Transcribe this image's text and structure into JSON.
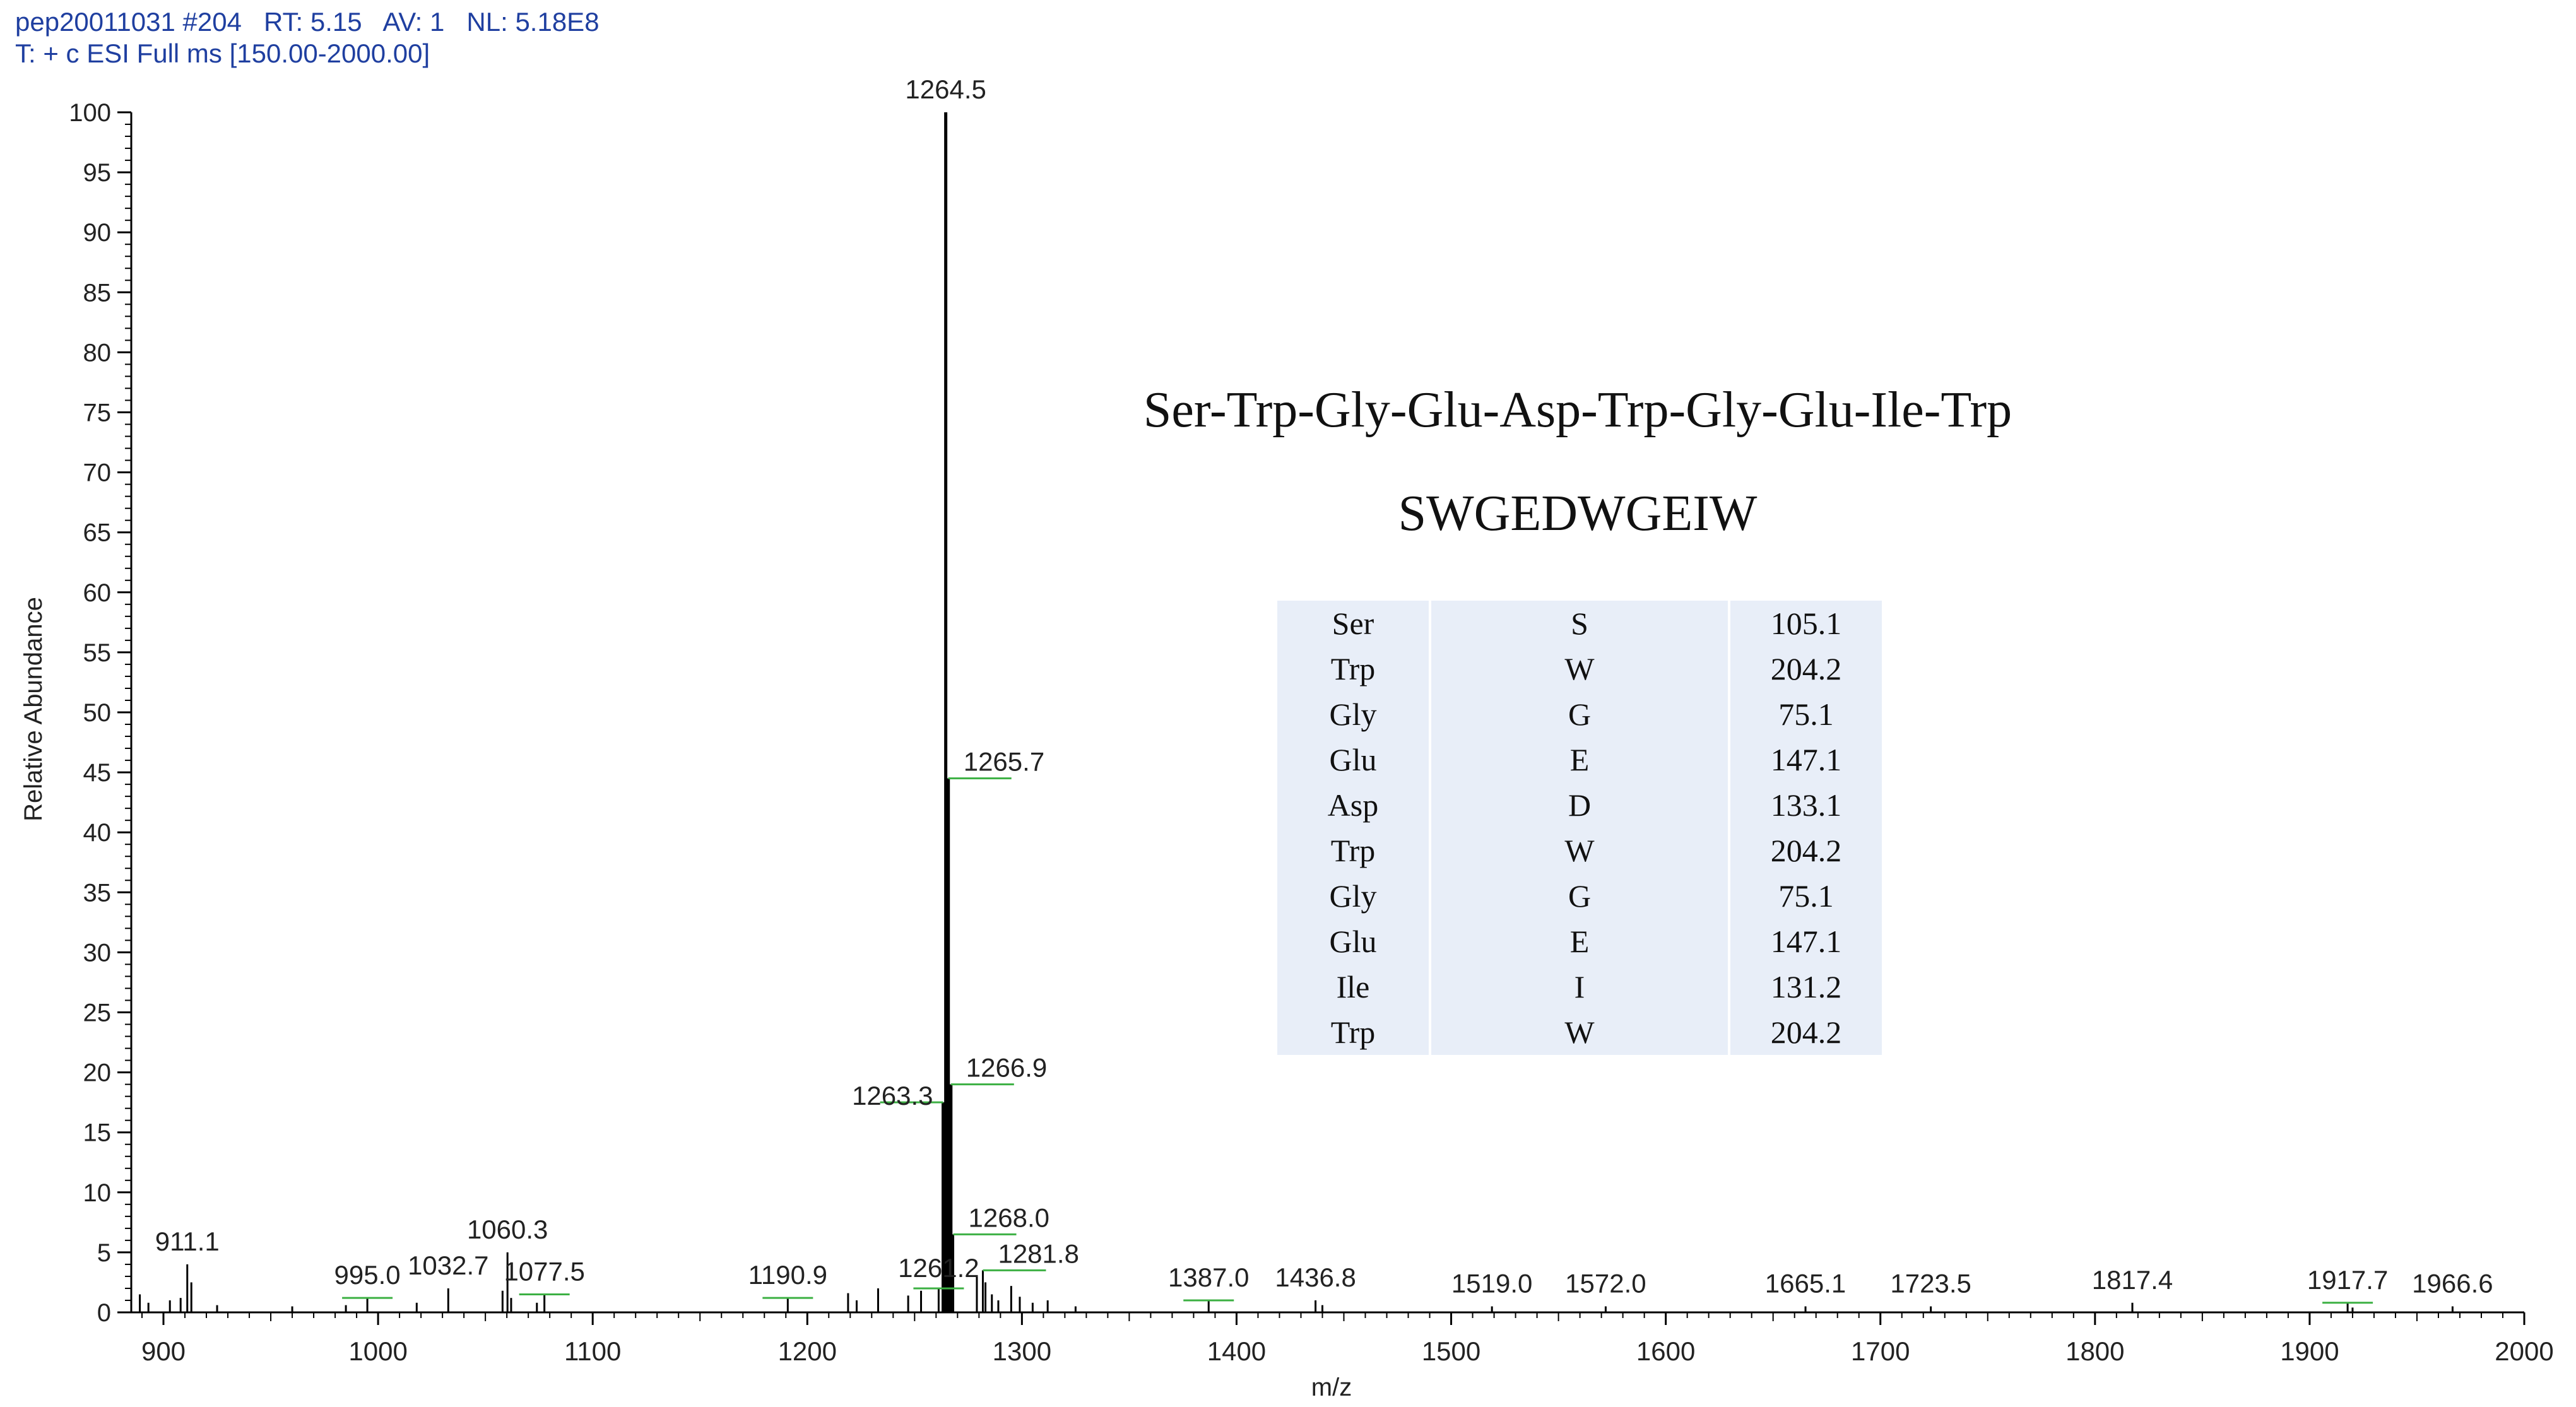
{
  "header": {
    "file": "pep20011031",
    "scan": "#204",
    "rt_label": "RT:",
    "rt": "5.15",
    "av_label": "AV:",
    "av": "1",
    "nl_label": "NL:",
    "nl": "5.18E8",
    "filter": "T: + c ESI Full ms [150.00-2000.00]"
  },
  "sequence": {
    "three_letter": "Ser-Trp-Gly-Glu-Asp-Trp-Gly-Glu-Ile-Trp",
    "one_letter": "SWGEDWGEIW"
  },
  "residues": [
    {
      "name": "Ser",
      "code": "S",
      "mass": "105.1"
    },
    {
      "name": "Trp",
      "code": "W",
      "mass": "204.2"
    },
    {
      "name": "Gly",
      "code": "G",
      "mass": "75.1"
    },
    {
      "name": "Glu",
      "code": "E",
      "mass": "147.1"
    },
    {
      "name": "Asp",
      "code": "D",
      "mass": "133.1"
    },
    {
      "name": "Trp",
      "code": "W",
      "mass": "204.2"
    },
    {
      "name": "Gly",
      "code": "G",
      "mass": "75.1"
    },
    {
      "name": "Glu",
      "code": "E",
      "mass": "147.1"
    },
    {
      "name": "Ile",
      "code": "I",
      "mass": "131.2"
    },
    {
      "name": "Trp",
      "code": "W",
      "mass": "204.2"
    }
  ],
  "colors": {
    "header_text": "#1f3fa0",
    "peak": "#000000",
    "label_marker": "#3cb043",
    "table_bg": "#e8eef8"
  },
  "chart_data": {
    "type": "bar",
    "xlabel": "m/z",
    "ylabel": "Relative Abundance",
    "xlim": [
      885,
      2000
    ],
    "ylim": [
      0,
      100
    ],
    "xticks": [
      "900",
      "1000",
      "1100",
      "1200",
      "1300",
      "1400",
      "1500",
      "1600",
      "1700",
      "1800",
      "1900",
      "2000"
    ],
    "yticks": [
      "0",
      "5",
      "10",
      "15",
      "20",
      "25",
      "30",
      "35",
      "40",
      "45",
      "50",
      "55",
      "60",
      "65",
      "70",
      "75",
      "80",
      "85",
      "90",
      "95",
      "100"
    ],
    "labeled_peaks": [
      {
        "mz": 911.1,
        "intensity": 4.0,
        "label": "911.1"
      },
      {
        "mz": 995.0,
        "intensity": 1.2,
        "label": "995.0"
      },
      {
        "mz": 1032.7,
        "intensity": 2.0,
        "label": "1032.7"
      },
      {
        "mz": 1060.3,
        "intensity": 5.0,
        "label": "1060.3"
      },
      {
        "mz": 1077.5,
        "intensity": 1.5,
        "label": "1077.5"
      },
      {
        "mz": 1190.9,
        "intensity": 1.2,
        "label": "1190.9"
      },
      {
        "mz": 1261.2,
        "intensity": 2.0,
        "label": "1261.2"
      },
      {
        "mz": 1263.3,
        "intensity": 17.5,
        "label": "1263.3"
      },
      {
        "mz": 1264.5,
        "intensity": 100,
        "label": "1264.5"
      },
      {
        "mz": 1265.7,
        "intensity": 44.5,
        "label": "1265.7"
      },
      {
        "mz": 1266.9,
        "intensity": 19.0,
        "label": "1266.9"
      },
      {
        "mz": 1268.0,
        "intensity": 6.5,
        "label": "1268.0"
      },
      {
        "mz": 1281.8,
        "intensity": 3.5,
        "label": "1281.8"
      },
      {
        "mz": 1387.0,
        "intensity": 1.0,
        "label": "1387.0"
      },
      {
        "mz": 1436.8,
        "intensity": 1.0,
        "label": "1436.8"
      },
      {
        "mz": 1519.0,
        "intensity": 0.5,
        "label": "1519.0"
      },
      {
        "mz": 1572.0,
        "intensity": 0.5,
        "label": "1572.0"
      },
      {
        "mz": 1665.1,
        "intensity": 0.5,
        "label": "1665.1"
      },
      {
        "mz": 1723.5,
        "intensity": 0.5,
        "label": "1723.5"
      },
      {
        "mz": 1817.4,
        "intensity": 0.8,
        "label": "1817.4"
      },
      {
        "mz": 1917.7,
        "intensity": 0.8,
        "label": "1917.7"
      },
      {
        "mz": 1966.6,
        "intensity": 0.5,
        "label": "1966.6"
      }
    ],
    "minor_peaks": [
      {
        "mz": 889,
        "intensity": 1.5
      },
      {
        "mz": 893,
        "intensity": 0.8
      },
      {
        "mz": 903,
        "intensity": 1.0
      },
      {
        "mz": 908,
        "intensity": 1.2
      },
      {
        "mz": 913,
        "intensity": 2.5
      },
      {
        "mz": 925,
        "intensity": 0.6
      },
      {
        "mz": 960,
        "intensity": 0.5
      },
      {
        "mz": 985,
        "intensity": 0.6
      },
      {
        "mz": 1018,
        "intensity": 0.8
      },
      {
        "mz": 1058,
        "intensity": 1.8
      },
      {
        "mz": 1062,
        "intensity": 1.2
      },
      {
        "mz": 1074,
        "intensity": 0.8
      },
      {
        "mz": 1219,
        "intensity": 1.6
      },
      {
        "mz": 1223,
        "intensity": 1.0
      },
      {
        "mz": 1233,
        "intensity": 2.0
      },
      {
        "mz": 1247,
        "intensity": 1.4
      },
      {
        "mz": 1253,
        "intensity": 1.8
      },
      {
        "mz": 1279,
        "intensity": 3.0
      },
      {
        "mz": 1283,
        "intensity": 2.5
      },
      {
        "mz": 1286,
        "intensity": 1.5
      },
      {
        "mz": 1289,
        "intensity": 1.0
      },
      {
        "mz": 1295,
        "intensity": 2.2
      },
      {
        "mz": 1299,
        "intensity": 1.3
      },
      {
        "mz": 1305,
        "intensity": 0.8
      },
      {
        "mz": 1312,
        "intensity": 1.0
      },
      {
        "mz": 1325,
        "intensity": 0.5
      },
      {
        "mz": 1440,
        "intensity": 0.6
      },
      {
        "mz": 1920,
        "intensity": 0.4
      }
    ]
  }
}
